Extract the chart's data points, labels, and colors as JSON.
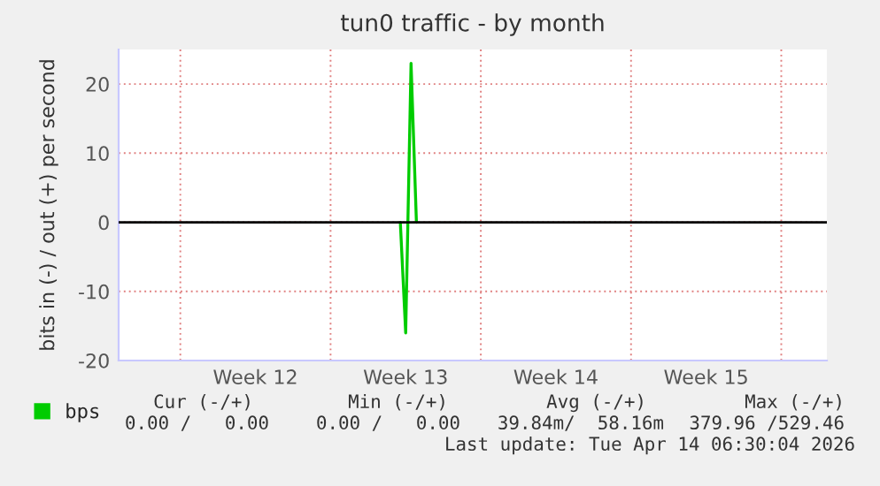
{
  "chart_data": {
    "type": "line",
    "title": "tun0 traffic - by month",
    "ylabel": "bits in (-) / out (+) per second",
    "categories": [
      null,
      null,
      null,
      null,
      null,
      null,
      null,
      null,
      null,
      null,
      null,
      null,
      null,
      null,
      null,
      null,
      null,
      null,
      null,
      null,
      null,
      null,
      null,
      null,
      null,
      "Week 12",
      null,
      null,
      null,
      null,
      null,
      null,
      null,
      null,
      null,
      null,
      null,
      null,
      null,
      null,
      null,
      null,
      null,
      null,
      null,
      null,
      null,
      null,
      null,
      null,
      null,
      null,
      null,
      "Week 13",
      null,
      null,
      null,
      null,
      null,
      null,
      null,
      null,
      null,
      null,
      null,
      null,
      null,
      null,
      null,
      null,
      null,
      null,
      null,
      null,
      null,
      null,
      null,
      null,
      null,
      null,
      null,
      "Week 14",
      null,
      null,
      null,
      null,
      null,
      null,
      null,
      null,
      null,
      null,
      null,
      null,
      null,
      null,
      null,
      null,
      null,
      null,
      null,
      null,
      null,
      null,
      null,
      null,
      null,
      null,
      null,
      "Week 15",
      null,
      null,
      null,
      null,
      null,
      null,
      null,
      null,
      null,
      null,
      null,
      null,
      null,
      null,
      null,
      null,
      null,
      null,
      null,
      null,
      null,
      null
    ],
    "series": [
      {
        "name": "bps",
        "color": "#00cc00",
        "values": [
          null,
          null,
          null,
          null,
          null,
          null,
          null,
          null,
          null,
          null,
          null,
          null,
          null,
          null,
          null,
          null,
          null,
          null,
          null,
          null,
          null,
          null,
          null,
          null,
          null,
          null,
          null,
          null,
          null,
          null,
          null,
          null,
          null,
          null,
          null,
          null,
          null,
          null,
          null,
          null,
          null,
          null,
          null,
          null,
          null,
          null,
          null,
          null,
          null,
          null,
          null,
          null,
          0,
          -16,
          23,
          0,
          null,
          null,
          null,
          null,
          null,
          null,
          null,
          null,
          null,
          null,
          null,
          null,
          null,
          null,
          null,
          null,
          null,
          null,
          null,
          null,
          null,
          null,
          null,
          null,
          null,
          null,
          null,
          null,
          null,
          null,
          null,
          null,
          null,
          null,
          null,
          null,
          null,
          null,
          null,
          null,
          null,
          null,
          null,
          null,
          null,
          null,
          null,
          null,
          null,
          null,
          null,
          null,
          null,
          null,
          null,
          null,
          null,
          null,
          null,
          null,
          null,
          null,
          null,
          null,
          null,
          null,
          null,
          null,
          null,
          null,
          null,
          null,
          null,
          null,
          null,
          null
        ]
      }
    ],
    "ylim": [
      -20,
      25
    ],
    "yticks": [
      -20,
      -10,
      0,
      10,
      20
    ],
    "ref_lines": [
      {
        "axis": "y",
        "value": 0,
        "color": "#000000"
      }
    ],
    "grid": true,
    "legend": "bottom left",
    "annotations": [
      "Cur (-/+)",
      "Min (-/+)",
      "Avg (-/+)",
      "Max (-/+)",
      "0.00 /   0.00",
      "0.00 /   0.00",
      "39.84m/  58.16m",
      "379.96 /529.46",
      "Last update: Tue Apr 14 06:30:04 2026"
    ]
  }
}
